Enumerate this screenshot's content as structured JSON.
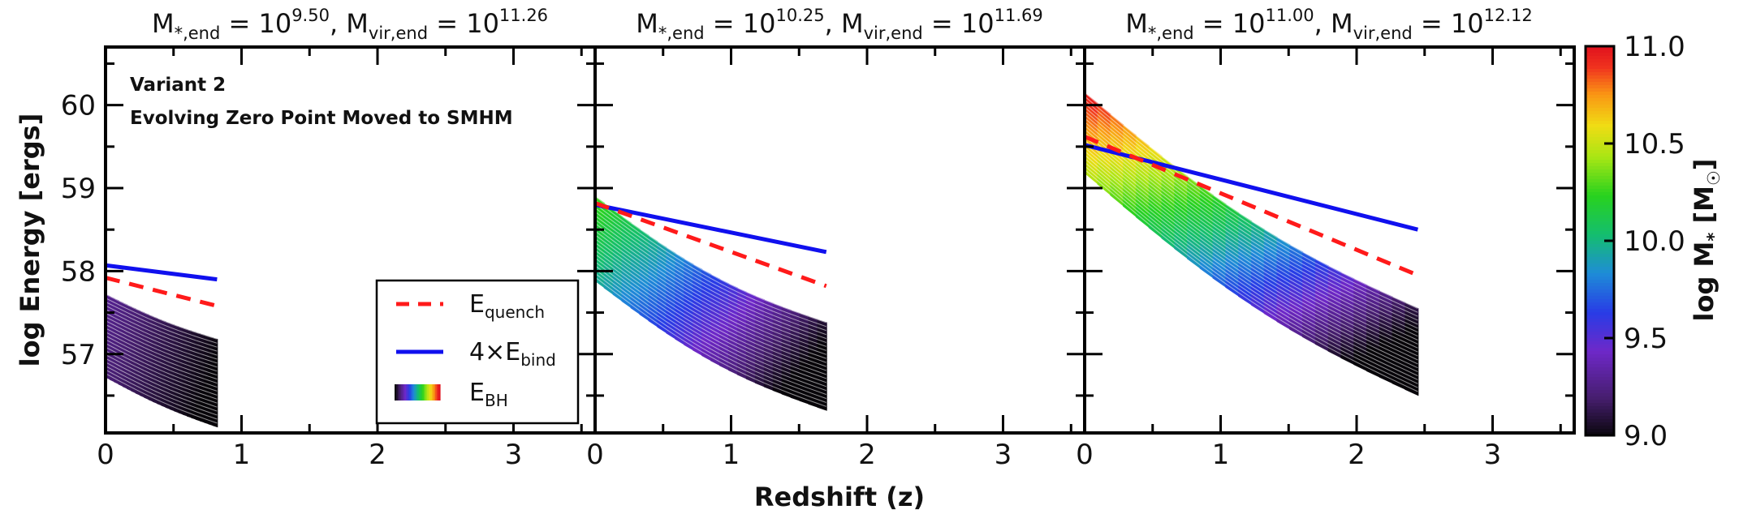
{
  "chart_data": {
    "type": "line",
    "ylabel": "log Energy [ergs]",
    "xlabel": "Redshift (z)",
    "xlim": [
      0,
      3.6
    ],
    "ylim": [
      56.05,
      60.7
    ],
    "x_ticks": [
      "0",
      "1",
      "2",
      "3"
    ],
    "y_ticks": [
      "57",
      "58",
      "59",
      "60"
    ],
    "annotation": {
      "line1": "Variant 2",
      "line2": "Evolving Zero Point Moved to SMHM"
    },
    "colorbar": {
      "label_main": "log M",
      "label_sub": "*",
      "label_unit_open": "[M",
      "label_unit_sun": "☉",
      "label_unit_close": "]",
      "min": 9.0,
      "max": 11.0,
      "ticks": [
        "11.0",
        "10.5",
        "10.0",
        "9.5",
        "9.0"
      ],
      "tick_values": [
        11.0,
        10.5,
        10.0,
        9.5,
        9.0
      ]
    },
    "legend": {
      "entries": [
        {
          "main": "E",
          "sub": "quench",
          "style": "dashed",
          "color": "#ff1a1a"
        },
        {
          "main": "4×E",
          "sub": "bind",
          "style": "solid",
          "color": "#1010ee"
        },
        {
          "main": "E",
          "sub": "BH",
          "style": "gradient"
        }
      ]
    },
    "panels": [
      {
        "title": {
          "ms_label": "M",
          "ms_sub": "*,end",
          "eq1": " = 10",
          "ms_exp": "9.50",
          "comma": ",  M",
          "mv_sub": "vir,end",
          "eq2": " = 10",
          "mv_exp": "11.26"
        },
        "z_end": 0.82,
        "E_quench": {
          "x": [
            0,
            0.82
          ],
          "y": [
            57.92,
            57.58
          ]
        },
        "E_bind4": {
          "x": [
            0,
            0.82
          ],
          "y": [
            58.07,
            57.9
          ]
        },
        "E_BH": {
          "top": [
            57.72,
            57.18
          ],
          "bottom": [
            56.72,
            56.12
          ],
          "color_top": 9.3,
          "color_bottom": 9.0,
          "curvature": 0.04
        }
      },
      {
        "title": {
          "ms_label": "M",
          "ms_sub": "*,end",
          "eq1": " = 10",
          "ms_exp": "10.25",
          "comma": ",  M",
          "mv_sub": "vir,end",
          "eq2": " = 10",
          "mv_exp": "11.69"
        },
        "z_end": 1.7,
        "E_quench": {
          "x": [
            0,
            1.7
          ],
          "y": [
            58.82,
            57.82
          ]
        },
        "E_bind4": {
          "x": [
            0,
            1.7
          ],
          "y": [
            58.8,
            58.23
          ]
        },
        "E_BH": {
          "top": [
            58.9,
            57.38
          ],
          "bottom": [
            57.88,
            56.32
          ],
          "color_top": 10.3,
          "color_bottom": 9.0,
          "curvature": 0.18
        }
      },
      {
        "title": {
          "ms_label": "M",
          "ms_sub": "*,end",
          "eq1": " = 10",
          "ms_exp": "11.00",
          "comma": ",  M",
          "mv_sub": "vir,end",
          "eq2": " = 10",
          "mv_exp": "12.12"
        },
        "z_end": 2.45,
        "E_quench": {
          "x": [
            0,
            2.45
          ],
          "y": [
            59.62,
            57.95
          ]
        },
        "E_bind4": {
          "x": [
            0,
            2.45
          ],
          "y": [
            59.52,
            58.5
          ]
        },
        "E_BH": {
          "top": [
            60.15,
            57.55
          ],
          "bottom": [
            59.18,
            56.5
          ],
          "color_top": 11.0,
          "color_bottom": 9.0,
          "curvature": 0.25
        }
      }
    ]
  }
}
